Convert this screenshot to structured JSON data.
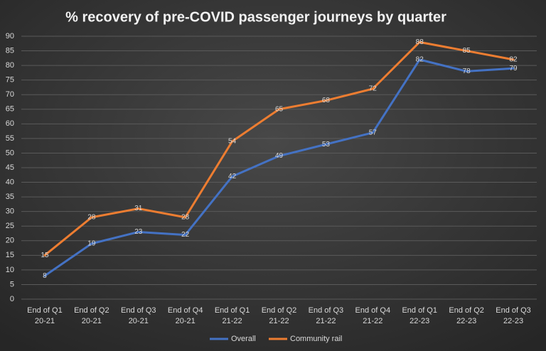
{
  "chart_data": {
    "type": "line",
    "title": "% recovery of pre-COVID passenger journeys by quarter",
    "categories": [
      [
        "End of Q1",
        "20-21"
      ],
      [
        "End of Q2",
        "20-21"
      ],
      [
        "End of Q3",
        "20-21"
      ],
      [
        "End of Q4",
        "20-21"
      ],
      [
        "End of Q1",
        "21-22"
      ],
      [
        "End of Q2",
        "21-22"
      ],
      [
        "End of Q3",
        "21-22"
      ],
      [
        "End of Q4",
        "21-22"
      ],
      [
        "End of Q1",
        "22-23"
      ],
      [
        "End of Q2",
        "22-23"
      ],
      [
        "End of Q3",
        "22-23"
      ]
    ],
    "series": [
      {
        "name": "Overall",
        "color": "#4472c4",
        "values": [
          8,
          19,
          23,
          22,
          42,
          49,
          53,
          57,
          82,
          78,
          79
        ]
      },
      {
        "name": "Community rail",
        "color": "#ed7d31",
        "values": [
          15,
          28,
          31,
          28,
          54,
          65,
          68,
          72,
          88,
          85,
          82
        ]
      }
    ],
    "ylim": [
      0,
      90
    ],
    "yticks": [
      0,
      5,
      10,
      15,
      20,
      25,
      30,
      35,
      40,
      45,
      50,
      55,
      60,
      65,
      70,
      75,
      80,
      85,
      90
    ],
    "grid": true,
    "legend": "bottom"
  }
}
